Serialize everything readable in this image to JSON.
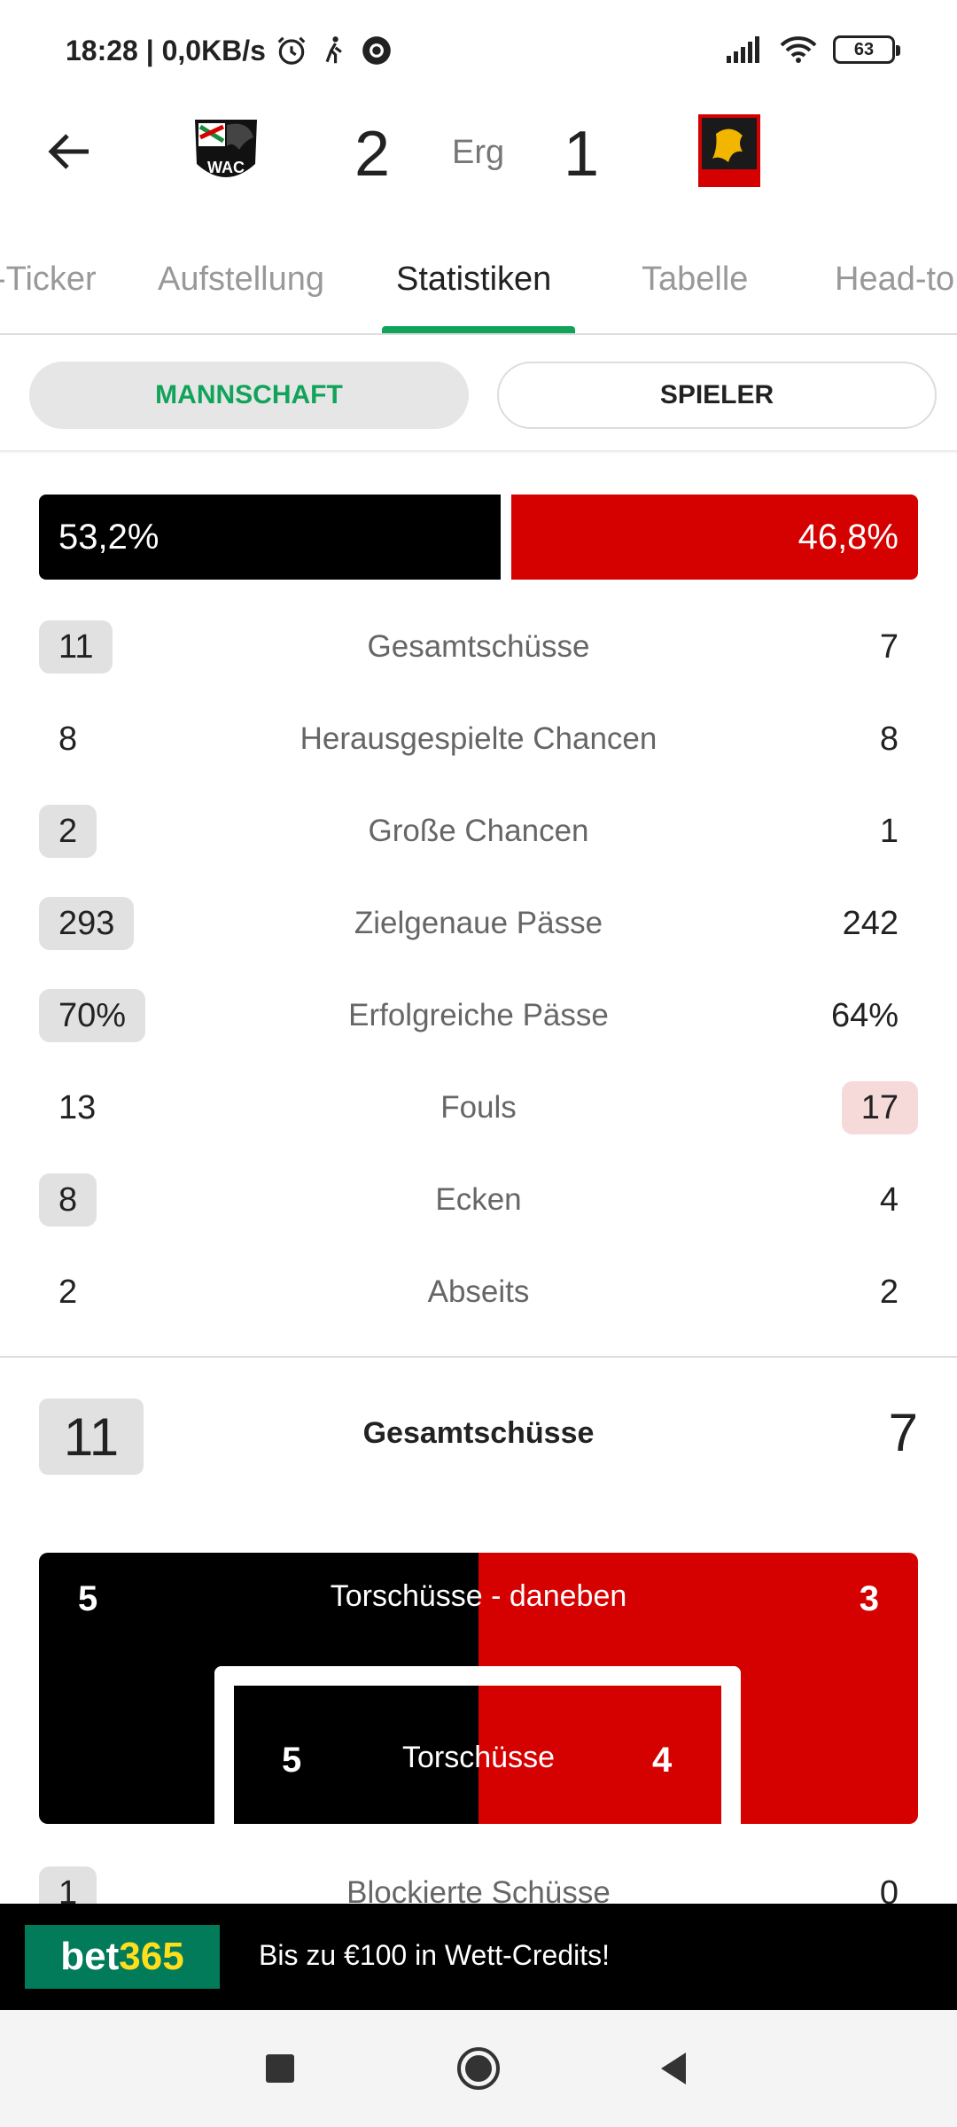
{
  "status_bar": {
    "time_info": "18:28 | 0,0KB/s",
    "battery": "63"
  },
  "match": {
    "home_score": "2",
    "away_score": "1",
    "status": "Erg",
    "home_logo": "wac-crest-icon",
    "away_logo": "admira-crest-icon"
  },
  "tabs": [
    {
      "label": "-Ticker"
    },
    {
      "label": "Aufstellung"
    },
    {
      "label": "Statistiken"
    },
    {
      "label": "Tabelle"
    },
    {
      "label": "Head-to"
    }
  ],
  "active_tab": "Statistiken",
  "segments": {
    "team": "MANNSCHAFT",
    "player": "SPIELER",
    "selected": "team"
  },
  "possession": {
    "home": "53,2%",
    "away": "46,8%",
    "home_value": 53.2,
    "away_value": 46.8,
    "home_color": "#000000",
    "away_color": "#d50000"
  },
  "stats": [
    {
      "label": "Gesamtschüsse",
      "home": "11",
      "away": "7",
      "leader": "home"
    },
    {
      "label": "Herausgespielte Chancen",
      "home": "8",
      "away": "8",
      "leader": "none"
    },
    {
      "label": "Große Chancen",
      "home": "2",
      "away": "1",
      "leader": "home"
    },
    {
      "label": "Zielgenaue Pässe",
      "home": "293",
      "away": "242",
      "leader": "home"
    },
    {
      "label": "Erfolgreiche Pässe",
      "home": "70%",
      "away": "64%",
      "leader": "home"
    },
    {
      "label": "Fouls",
      "home": "13",
      "away": "17",
      "leader": "away"
    },
    {
      "label": "Ecken",
      "home": "8",
      "away": "4",
      "leader": "home"
    },
    {
      "label": "Abseits",
      "home": "2",
      "away": "2",
      "leader": "none"
    }
  ],
  "shots": {
    "title": "Gesamtschüsse",
    "home_total": "11",
    "away_total": "7",
    "off_target_label": "Torschüsse - daneben",
    "off_target_home": "5",
    "off_target_away": "3",
    "on_target_label": "Torschüsse",
    "on_target_home": "5",
    "on_target_away": "4",
    "blocked_label": "Blockierte Schüsse",
    "blocked_home": "1",
    "blocked_away": "0"
  },
  "ad": {
    "brand_a": "bet",
    "brand_b": "365",
    "text": "Bis zu €100 in Wett-Credits!"
  }
}
